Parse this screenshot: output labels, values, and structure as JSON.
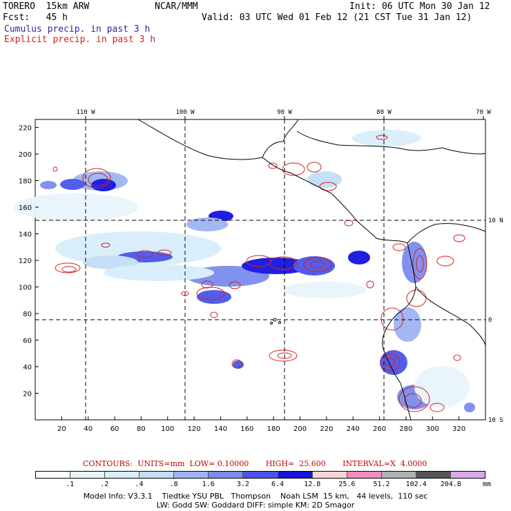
{
  "header": {
    "model": "TORERO  15km ARW",
    "org": "NCAR/MMM",
    "init": "Init: 06 UTC Mon 30 Jan 12",
    "fcst": "Fcst:   45 h",
    "valid": "Valid: 03 UTC Wed 01 Feb 12 (21 CST Tue 31 Jan 12)"
  },
  "legend": {
    "cumulus": "Cumulus precip. in past 3 h",
    "explicit": "Explicit precip. in past 3 h",
    "cumulus_color": "#2a2a9a",
    "explicit_color": "#d42020"
  },
  "map": {
    "top_lon_labels": [
      "110 W",
      "100 W",
      "90 W",
      "80 W",
      "70 W"
    ],
    "right_lat_labels": [
      "10 N",
      "0",
      "10 S"
    ],
    "x_ticks": [
      "20",
      "40",
      "60",
      "80",
      "100",
      "120",
      "140",
      "160",
      "180",
      "200",
      "220",
      "240",
      "260",
      "280",
      "300",
      "320"
    ],
    "y_ticks": [
      "20",
      "40",
      "60",
      "80",
      "100",
      "120",
      "140",
      "160",
      "180",
      "200",
      "220"
    ]
  },
  "contours_line": "CONTOURS:  UNITS=mm  LOW= 0.10000       HIGH=  25.600       INTERVAL=X  4.0000",
  "colorbar": {
    "colors": [
      "#ffffff",
      "#e8f4fb",
      "#d8eefa",
      "#c4def6",
      "#9fb4f2",
      "#7b8cee",
      "#4a55e8",
      "#1414e0",
      "#fcd4d4",
      "#f08cc0",
      "#b0b0b0",
      "#555555",
      "#d8a8f0"
    ],
    "labels": [
      ".1",
      ".2",
      ".4",
      ".8",
      "1.6",
      "3.2",
      "6.4",
      "12.8",
      "25.6",
      "51.2",
      "102.4",
      "204.8"
    ],
    "unit": "mm"
  },
  "info": {
    "line1": "Model Info: V3.3.1    Tiedtke YSU PBL   Thompson    Noah LSM  15 km,   44 levels,  110 sec",
    "line2": "LW: Godd SW: Goddard DIFF: simple KM: 2D Smagor"
  }
}
